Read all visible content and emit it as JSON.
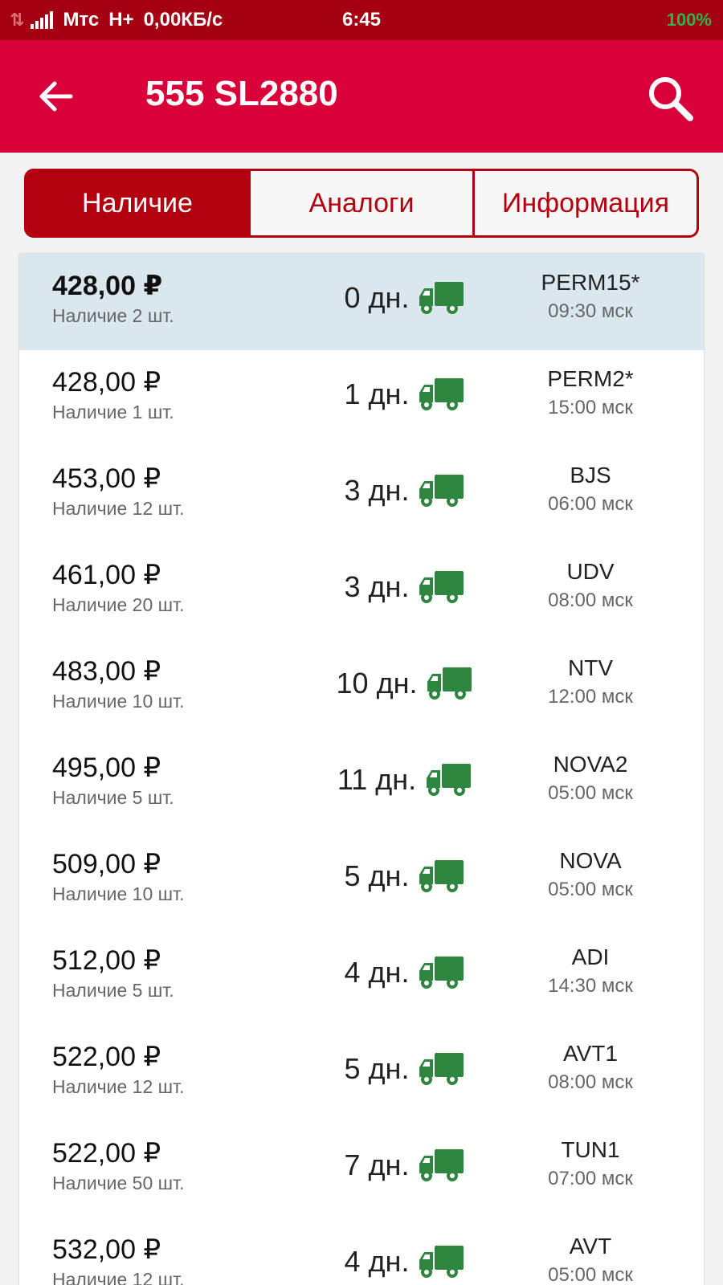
{
  "status_bar": {
    "carrier": "Мтс",
    "network": "H+",
    "speed": "0,00КБ/с",
    "time": "6:45",
    "battery": "100%"
  },
  "app_bar": {
    "title": "555 SL2880"
  },
  "tabs": [
    {
      "label": "Наличие",
      "active": true
    },
    {
      "label": "Аналоги",
      "active": false
    },
    {
      "label": "Информация",
      "active": false
    }
  ],
  "offers": [
    {
      "price": "428,00 ₽",
      "stock": "Наличие 2 шт.",
      "days": "0 дн.",
      "supplier": "PERM15*",
      "time": "09:30 мск"
    },
    {
      "price": "428,00 ₽",
      "stock": "Наличие 1 шт.",
      "days": "1 дн.",
      "supplier": "PERM2*",
      "time": "15:00 мск"
    },
    {
      "price": "453,00 ₽",
      "stock": "Наличие 12 шт.",
      "days": "3 дн.",
      "supplier": "BJS",
      "time": "06:00 мск"
    },
    {
      "price": "461,00 ₽",
      "stock": "Наличие 20 шт.",
      "days": "3 дн.",
      "supplier": "UDV",
      "time": "08:00 мск"
    },
    {
      "price": "483,00 ₽",
      "stock": "Наличие 10 шт.",
      "days": "10 дн.",
      "supplier": "NTV",
      "time": "12:00 мск"
    },
    {
      "price": "495,00 ₽",
      "stock": "Наличие 5 шт.",
      "days": "11 дн.",
      "supplier": "NOVA2",
      "time": "05:00 мск"
    },
    {
      "price": "509,00 ₽",
      "stock": "Наличие 10 шт.",
      "days": "5 дн.",
      "supplier": "NOVA",
      "time": "05:00 мск"
    },
    {
      "price": "512,00 ₽",
      "stock": "Наличие 5 шт.",
      "days": "4 дн.",
      "supplier": "ADI",
      "time": "14:30 мск"
    },
    {
      "price": "522,00 ₽",
      "stock": "Наличие 12 шт.",
      "days": "5 дн.",
      "supplier": "AVT1",
      "time": "08:00 мск"
    },
    {
      "price": "522,00 ₽",
      "stock": "Наличие 50 шт.",
      "days": "7 дн.",
      "supplier": "TUN1",
      "time": "07:00 мск"
    },
    {
      "price": "532,00 ₽",
      "stock": "Наличие 12 шт.",
      "days": "4 дн.",
      "supplier": "AVT",
      "time": "05:00 мск"
    }
  ],
  "colors": {
    "status_bar": "#a50012",
    "app_bar": "#d9003a",
    "accent": "#b3000f",
    "selected_row": "#dbe7ef",
    "truck": "#2e8540",
    "battery": "#2fb34a"
  },
  "icons": {
    "back": "arrow-left-icon",
    "search": "magnifier-icon",
    "delivery": "truck-icon"
  }
}
